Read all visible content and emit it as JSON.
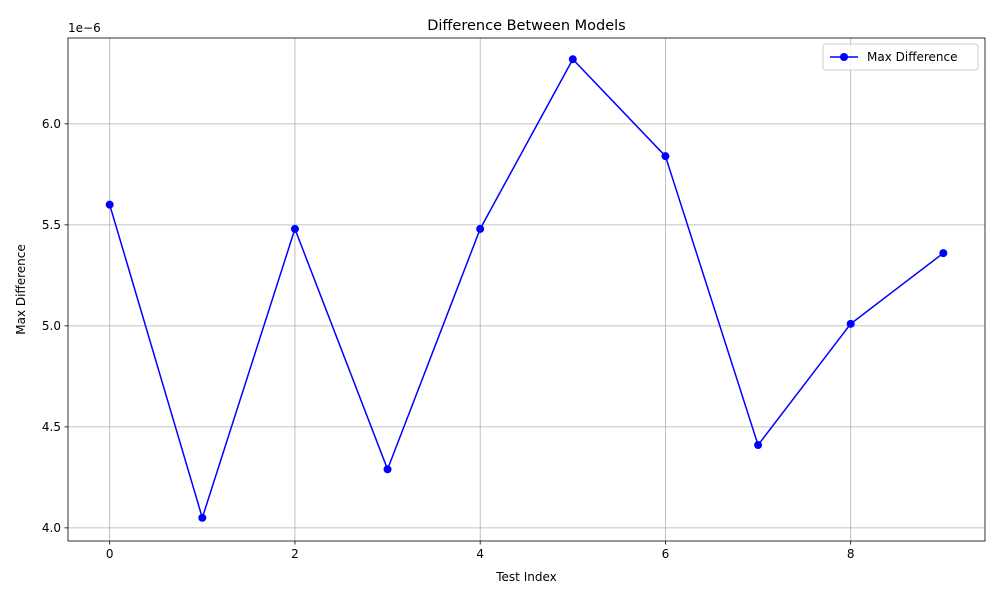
{
  "chart_data": {
    "type": "line",
    "title": "Difference Between Models",
    "xlabel": "Test Index",
    "ylabel": "Max Difference",
    "y_offset_text": "1e−6",
    "x": [
      0,
      1,
      2,
      3,
      4,
      5,
      6,
      7,
      8,
      9
    ],
    "series": [
      {
        "name": "Max Difference",
        "color": "#0000ff",
        "marker": "circle",
        "values": [
          5.6,
          4.05,
          5.48,
          4.29,
          5.48,
          6.32,
          5.84,
          4.41,
          5.01,
          5.36
        ]
      }
    ],
    "xlim": [
      -0.45,
      9.45
    ],
    "ylim": [
      3.935,
      6.425
    ],
    "x_ticks": [
      0,
      2,
      4,
      6,
      8
    ],
    "x_tick_labels": [
      "0",
      "2",
      "4",
      "6",
      "8"
    ],
    "y_ticks": [
      4.0,
      4.5,
      5.0,
      5.5,
      6.0
    ],
    "y_tick_labels": [
      "4.0",
      "4.5",
      "5.0",
      "5.5",
      "6.0"
    ],
    "grid": true,
    "legend_position": "top-right"
  }
}
